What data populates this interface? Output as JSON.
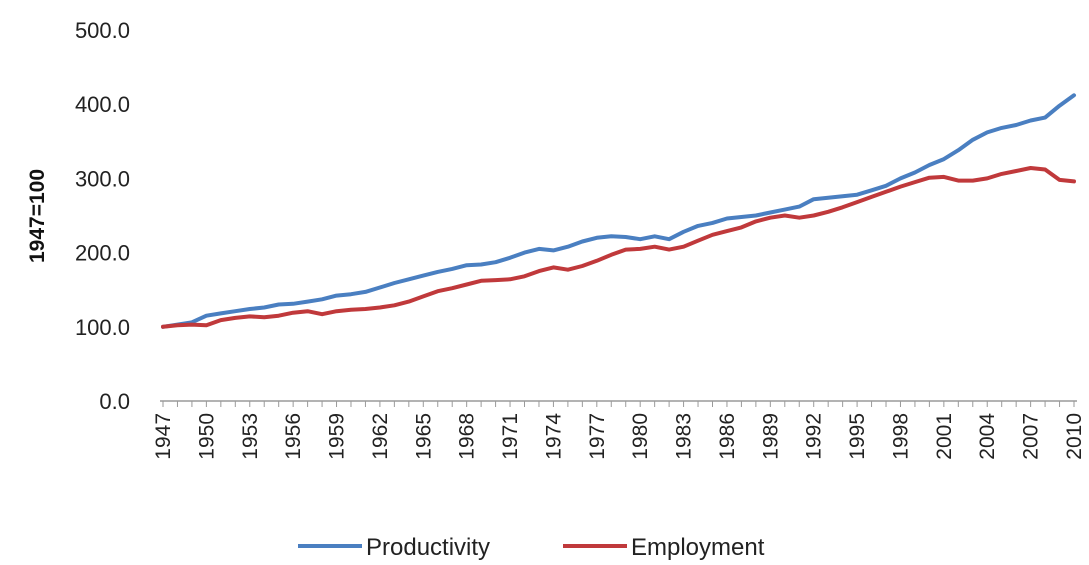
{
  "chart_data": {
    "type": "line",
    "title": "",
    "xlabel": "",
    "ylabel": "1947=100",
    "ylim": [
      0,
      500
    ],
    "yticks": [
      "0.0",
      "100.0",
      "200.0",
      "300.0",
      "400.0",
      "500.0"
    ],
    "x": [
      1947,
      1948,
      1949,
      1950,
      1951,
      1952,
      1953,
      1954,
      1955,
      1956,
      1957,
      1958,
      1959,
      1960,
      1961,
      1962,
      1963,
      1964,
      1965,
      1966,
      1967,
      1968,
      1969,
      1970,
      1971,
      1972,
      1973,
      1974,
      1975,
      1976,
      1977,
      1978,
      1979,
      1980,
      1981,
      1982,
      1983,
      1984,
      1985,
      1986,
      1987,
      1988,
      1989,
      1990,
      1991,
      1992,
      1993,
      1994,
      1995,
      1996,
      1997,
      1998,
      1999,
      2000,
      2001,
      2002,
      2003,
      2004,
      2005,
      2006,
      2007,
      2008,
      2009,
      2010
    ],
    "xtick_labels": [
      "1947",
      "1950",
      "1953",
      "1956",
      "1959",
      "1962",
      "1965",
      "1968",
      "1971",
      "1974",
      "1977",
      "1980",
      "1983",
      "1986",
      "1989",
      "1992",
      "1995",
      "1998",
      "2001",
      "2004",
      "2007",
      "2010"
    ],
    "grid": false,
    "legend_position": "bottom",
    "series": [
      {
        "name": "Productivity",
        "color": "#4a7fc1",
        "values": [
          100,
          103,
          106,
          115,
          118,
          121,
          124,
          126,
          130,
          131,
          134,
          137,
          142,
          144,
          147,
          153,
          159,
          164,
          169,
          174,
          178,
          183,
          184,
          187,
          193,
          200,
          205,
          203,
          208,
          215,
          220,
          222,
          221,
          218,
          222,
          218,
          228,
          236,
          240,
          246,
          248,
          250,
          254,
          258,
          262,
          272,
          274,
          276,
          278,
          284,
          290,
          300,
          308,
          318,
          326,
          338,
          352,
          362,
          368,
          372,
          378,
          382,
          398,
          412
        ]
      },
      {
        "name": "Employment",
        "color": "#c0393b",
        "values": [
          100,
          102,
          103,
          102,
          109,
          112,
          114,
          113,
          115,
          119,
          121,
          117,
          121,
          123,
          124,
          126,
          129,
          134,
          141,
          148,
          152,
          157,
          162,
          163,
          164,
          168,
          175,
          180,
          177,
          182,
          189,
          197,
          204,
          205,
          208,
          204,
          208,
          216,
          224,
          229,
          234,
          242,
          247,
          250,
          247,
          250,
          255,
          261,
          268,
          275,
          282,
          289,
          295,
          301,
          302,
          297,
          297,
          300,
          306,
          310,
          314,
          312,
          298,
          296
        ]
      }
    ]
  }
}
